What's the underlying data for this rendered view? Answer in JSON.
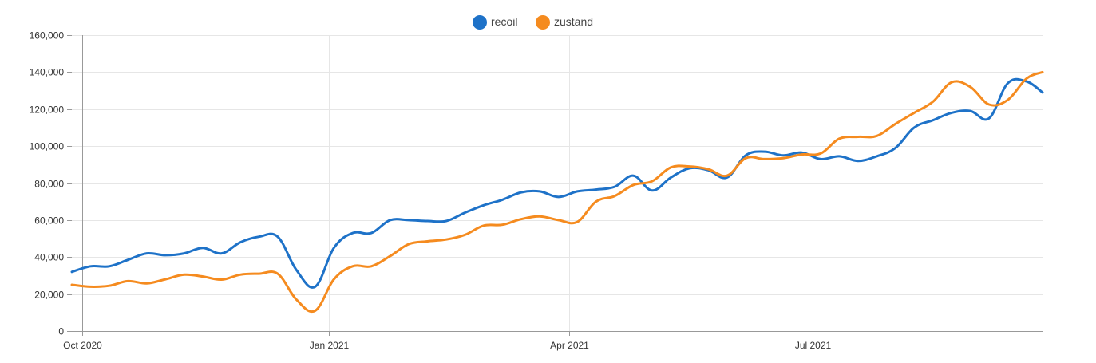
{
  "chart_data": {
    "type": "line",
    "title": "",
    "xlabel": "",
    "ylabel": "",
    "ylim": [
      0,
      160000
    ],
    "y_ticks": [
      0,
      20000,
      40000,
      60000,
      80000,
      100000,
      120000,
      140000,
      160000
    ],
    "y_tick_labels": [
      "0",
      "20,000",
      "40,000",
      "60,000",
      "80,000",
      "100,000",
      "120,000",
      "140,000",
      "160,000"
    ],
    "x_ticks": [
      {
        "date": "2020-10-01",
        "label": "Oct 2020"
      },
      {
        "date": "2021-01-01",
        "label": "Jan 2021"
      },
      {
        "date": "2021-04-01",
        "label": "Apr 2021"
      },
      {
        "date": "2021-07-01",
        "label": "Jul 2021"
      }
    ],
    "xlim": [
      "2020-09-27",
      "2021-09-25"
    ],
    "grid": true,
    "legend_position": "top-center",
    "x": [
      "2020-09-27",
      "2020-10-04",
      "2020-10-11",
      "2020-10-18",
      "2020-10-25",
      "2020-11-01",
      "2020-11-08",
      "2020-11-15",
      "2020-11-22",
      "2020-11-29",
      "2020-12-06",
      "2020-12-13",
      "2020-12-20",
      "2020-12-27",
      "2021-01-03",
      "2021-01-10",
      "2021-01-17",
      "2021-01-24",
      "2021-01-31",
      "2021-02-07",
      "2021-02-14",
      "2021-02-21",
      "2021-02-28",
      "2021-03-07",
      "2021-03-14",
      "2021-03-21",
      "2021-03-28",
      "2021-04-04",
      "2021-04-11",
      "2021-04-18",
      "2021-04-25",
      "2021-05-02",
      "2021-05-09",
      "2021-05-16",
      "2021-05-23",
      "2021-05-30",
      "2021-06-06",
      "2021-06-13",
      "2021-06-20",
      "2021-06-27",
      "2021-07-04",
      "2021-07-11",
      "2021-07-18",
      "2021-07-25",
      "2021-08-01",
      "2021-08-08",
      "2021-08-15",
      "2021-08-22",
      "2021-08-29",
      "2021-09-05",
      "2021-09-12",
      "2021-09-19",
      "2021-09-25"
    ],
    "series": [
      {
        "name": "recoil",
        "color": "#1e72c8",
        "values": [
          32000,
          35000,
          35000,
          38500,
          42000,
          41000,
          42000,
          45000,
          42000,
          48000,
          51000,
          51000,
          33000,
          24000,
          45000,
          53000,
          53000,
          60000,
          60000,
          59500,
          59500,
          64000,
          68000,
          71000,
          75000,
          75500,
          72500,
          75500,
          76500,
          78000,
          84000,
          76000,
          83000,
          88000,
          87000,
          83000,
          95000,
          97000,
          95000,
          96500,
          93000,
          94500,
          92000,
          94500,
          99000,
          110000,
          114000,
          118000,
          119000,
          115000,
          134000,
          135000,
          129000
        ]
      },
      {
        "name": "zustand",
        "color": "#f58b1f",
        "values": [
          25000,
          24000,
          24500,
          27000,
          25800,
          28000,
          30500,
          29500,
          27800,
          30500,
          31000,
          31000,
          17000,
          11000,
          28000,
          35000,
          35000,
          40500,
          47000,
          48500,
          49500,
          52000,
          57000,
          57500,
          60500,
          62000,
          60000,
          59000,
          70000,
          73000,
          79000,
          81000,
          88500,
          89000,
          87500,
          84000,
          93500,
          93000,
          93500,
          95500,
          96000,
          104000,
          105000,
          105500,
          112000,
          118000,
          124000,
          134500,
          132000,
          122500,
          125000,
          136500,
          140000
        ]
      }
    ]
  }
}
